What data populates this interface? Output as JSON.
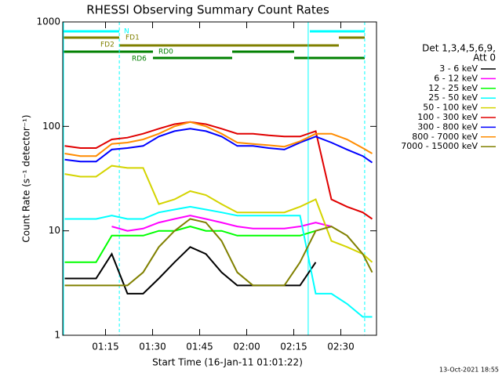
{
  "chart_data": {
    "type": "line",
    "title": "RHESSI Observing Summary Count Rates",
    "x_label": "Start Time (16-Jan-11 01:01:22)",
    "y_label": "Count Rate (s⁻¹ detector⁻¹)",
    "footer": "13-Oct-2021 18:55",
    "legend_title": [
      "Det 1,3,4,5,6,9,",
      "Att 0"
    ],
    "flags": [
      "N",
      "FD1",
      "FD2",
      "RD0",
      "RD6"
    ],
    "log_y": true,
    "xlim": [
      1.37,
      101.37
    ],
    "ylim": [
      1,
      1000
    ],
    "xticks": [
      {
        "value": 15,
        "label": "01:15"
      },
      {
        "value": 30,
        "label": "01:30"
      },
      {
        "value": 45,
        "label": "01:45"
      },
      {
        "value": 60,
        "label": "02:00"
      },
      {
        "value": 75,
        "label": "02:15"
      },
      {
        "value": 90,
        "label": "02:30"
      }
    ],
    "yticks": [
      1,
      10,
      100,
      1000
    ],
    "vlines_dashed": [
      19.4,
      97.6
    ],
    "vlines_solid": [
      79.6
    ],
    "x": [
      2,
      7,
      12,
      17,
      22,
      27,
      32,
      37,
      42,
      47,
      52,
      57,
      62,
      67,
      72,
      77,
      82,
      87,
      92,
      97,
      100
    ],
    "series": [
      {
        "name": "3 - 6 keV",
        "color": "#000000",
        "values": [
          3.5,
          3.5,
          3.5,
          6,
          2.5,
          2.5,
          3.5,
          5,
          7,
          6,
          4,
          3,
          3,
          3,
          3,
          3,
          5,
          null,
          null,
          null,
          null
        ]
      },
      {
        "name": "6 - 12 keV",
        "color": "#ff00ff",
        "values": [
          null,
          null,
          null,
          11,
          10,
          10.5,
          12,
          13,
          14,
          13,
          12,
          11,
          10.5,
          10.5,
          10.5,
          11,
          12,
          11,
          null,
          null,
          null
        ]
      },
      {
        "name": "12 - 25 keV",
        "color": "#00ff00",
        "values": [
          5,
          5,
          5,
          9,
          9,
          9,
          10,
          10,
          11,
          10,
          10,
          9,
          9,
          9,
          9,
          9,
          10,
          null,
          null,
          null,
          null
        ]
      },
      {
        "name": "25 - 50 keV",
        "color": "#00ffff",
        "values": [
          13,
          13,
          13,
          14,
          13,
          13,
          15,
          16,
          17,
          16,
          15,
          14,
          14,
          14,
          14,
          14,
          2.5,
          2.5,
          2,
          1.5,
          1.5
        ]
      },
      {
        "name": "50 - 100 keV",
        "color": "#d4d400",
        "values": [
          35,
          33,
          33,
          42,
          40,
          40,
          18,
          20,
          24,
          22,
          18,
          15,
          15,
          15,
          15,
          17,
          20,
          8,
          7,
          6,
          5
        ]
      },
      {
        "name": "100 - 300 keV",
        "color": "#e00000",
        "values": [
          65,
          62,
          62,
          75,
          78,
          85,
          95,
          105,
          110,
          105,
          95,
          85,
          85,
          82,
          80,
          80,
          90,
          20,
          17,
          15,
          13
        ]
      },
      {
        "name": "300 - 800 keV",
        "color": "#0000ff",
        "values": [
          48,
          46,
          46,
          60,
          62,
          65,
          80,
          90,
          95,
          90,
          80,
          65,
          65,
          62,
          60,
          70,
          80,
          70,
          60,
          52,
          45
        ]
      },
      {
        "name": "800 - 7000 keV",
        "color": "#ff8c00",
        "values": [
          55,
          52,
          52,
          68,
          70,
          75,
          85,
          100,
          110,
          100,
          85,
          70,
          68,
          66,
          64,
          72,
          85,
          85,
          75,
          62,
          55
        ]
      },
      {
        "name": "7000 - 15000 keV",
        "color": "#808000",
        "values": [
          3,
          3,
          3,
          3,
          3,
          4,
          7,
          10,
          13,
          12,
          8,
          4,
          3,
          3,
          3,
          5,
          10,
          11,
          9,
          6,
          4
        ]
      }
    ]
  }
}
